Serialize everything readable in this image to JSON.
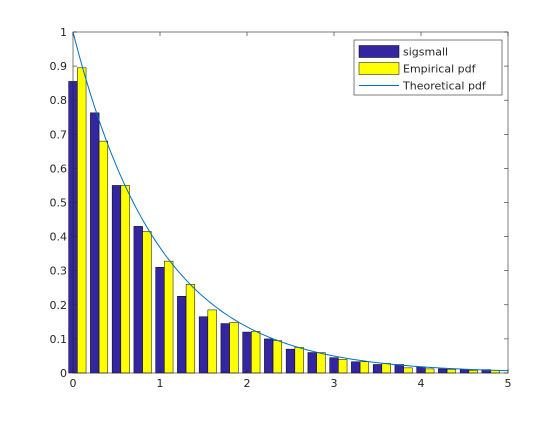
{
  "chart_data": {
    "type": "bar",
    "xlim": [
      0,
      5
    ],
    "ylim": [
      0,
      1
    ],
    "x_ticks": [
      "0",
      "1",
      "2",
      "3",
      "4",
      "5"
    ],
    "y_ticks": [
      "0",
      "0.1",
      "0.2",
      "0.3",
      "0.4",
      "0.5",
      "0.6",
      "0.7",
      "0.8",
      "0.9",
      "1"
    ],
    "grid": false,
    "legend_position": "top-right",
    "x": [
      0.05,
      0.3,
      0.55,
      0.8,
      1.05,
      1.3,
      1.55,
      1.8,
      2.05,
      2.3,
      2.55,
      2.8,
      3.05,
      3.3,
      3.55,
      3.8,
      4.05,
      4.3,
      4.55,
      4.8
    ],
    "series": [
      {
        "name": "sigsmall",
        "kind": "bar",
        "color": "#3326a0",
        "values": [
          0.855,
          0.763,
          0.55,
          0.43,
          0.31,
          0.225,
          0.165,
          0.145,
          0.12,
          0.1,
          0.07,
          0.06,
          0.045,
          0.033,
          0.025,
          0.025,
          0.018,
          0.012,
          0.01,
          0.01
        ]
      },
      {
        "name": "Empirical pdf",
        "kind": "bar",
        "color": "#ffff00",
        "values": [
          0.895,
          0.68,
          0.55,
          0.415,
          0.328,
          0.26,
          0.185,
          0.148,
          0.122,
          0.095,
          0.075,
          0.06,
          0.04,
          0.033,
          0.028,
          0.015,
          0.012,
          0.01,
          0.008,
          0.008
        ]
      },
      {
        "name": "Theoretical pdf",
        "kind": "line",
        "color": "#0072bd",
        "function": "exp(-x)"
      }
    ]
  }
}
